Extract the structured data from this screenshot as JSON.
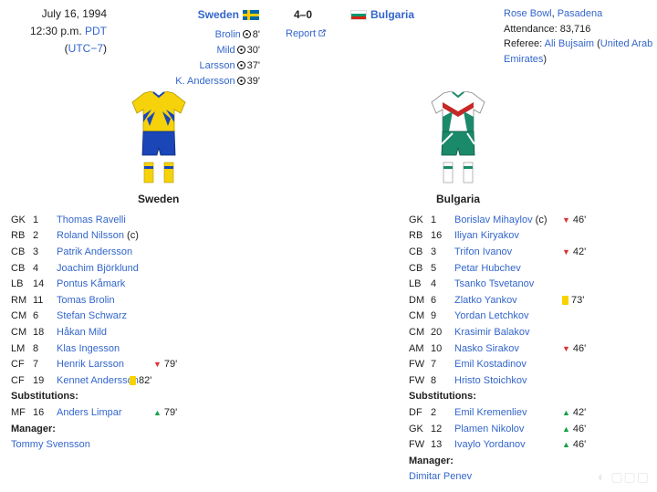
{
  "header": {
    "date": "July 16, 1994",
    "time": "12:30 p.m.",
    "tz": "PDT",
    "utc_prefix": "(",
    "utc": "UTC−7",
    "utc_suffix": ")",
    "home_team": "Sweden",
    "away_team": "Bulgaria",
    "score": "4–0",
    "report": "Report",
    "scorers": [
      {
        "name": "Brolin",
        "minute": "8'"
      },
      {
        "name": "Mild",
        "minute": "30'"
      },
      {
        "name": "Larsson",
        "minute": "37'"
      },
      {
        "name": "K. Andersson",
        "minute": "39'"
      }
    ],
    "venue": "Rose Bowl",
    "venue_sep": ", ",
    "city": "Pasadena",
    "attendance": "Attendance: 83,716",
    "referee_label": "Referee: ",
    "referee": "Ali Bujsaim",
    "referee_open": " (",
    "referee_country": "United Arab Emirates",
    "referee_close": ")"
  },
  "kits": {
    "home": {
      "shirt": "#f5d20a",
      "trim": "#1a46b8",
      "shorts": "#1a46b8",
      "socks": "#f5d20a"
    },
    "away": {
      "shirt": "#ffffff",
      "trim": "#1b8a6a",
      "accent": "#c62828",
      "shorts": "#1b8a6a",
      "socks": "#ffffff"
    }
  },
  "home": {
    "title": "Sweden",
    "players": [
      {
        "pos": "GK",
        "num": "1",
        "name": "Thomas Ravelli"
      },
      {
        "pos": "RB",
        "num": "2",
        "name": "Roland Nilsson",
        "extra": " (c)"
      },
      {
        "pos": "CB",
        "num": "3",
        "name": "Patrik Andersson"
      },
      {
        "pos": "CB",
        "num": "4",
        "name": "Joachim Björklund"
      },
      {
        "pos": "LB",
        "num": "14",
        "name": "Pontus Kåmark"
      },
      {
        "pos": "RM",
        "num": "11",
        "name": "Tomas Brolin"
      },
      {
        "pos": "CM",
        "num": "6",
        "name": "Stefan Schwarz"
      },
      {
        "pos": "CM",
        "num": "18",
        "name": "Håkan Mild"
      },
      {
        "pos": "LM",
        "num": "8",
        "name": "Klas Ingesson"
      },
      {
        "pos": "CF",
        "num": "7",
        "name": "Henrik Larsson",
        "event": "down",
        "minute": "79'"
      },
      {
        "pos": "CF",
        "num": "19",
        "name": "Kennet Andersson",
        "event": "yellow",
        "minute": "82'"
      }
    ],
    "subs_label": "Substitutions:",
    "subs": [
      {
        "pos": "MF",
        "num": "16",
        "name": "Anders Limpar",
        "event": "up",
        "minute": "79'"
      }
    ],
    "manager_label": "Manager:",
    "manager": "Tommy Svensson"
  },
  "away": {
    "title": "Bulgaria",
    "players": [
      {
        "pos": "GK",
        "num": "1",
        "name": "Borislav Mihaylov",
        "extra": " (c)",
        "event": "down",
        "minute": "46'"
      },
      {
        "pos": "RB",
        "num": "16",
        "name": "Iliyan Kiryakov"
      },
      {
        "pos": "CB",
        "num": "3",
        "name": "Trifon Ivanov",
        "event": "down",
        "minute": "42'"
      },
      {
        "pos": "CB",
        "num": "5",
        "name": "Petar Hubchev"
      },
      {
        "pos": "LB",
        "num": "4",
        "name": "Tsanko Tsvetanov"
      },
      {
        "pos": "DM",
        "num": "6",
        "name": "Zlatko Yankov",
        "event": "yellow",
        "minute": "73'"
      },
      {
        "pos": "CM",
        "num": "9",
        "name": "Yordan Letchkov"
      },
      {
        "pos": "CM",
        "num": "20",
        "name": "Krasimir Balakov"
      },
      {
        "pos": "AM",
        "num": "10",
        "name": "Nasko Sirakov",
        "event": "down",
        "minute": "46'"
      },
      {
        "pos": "FW",
        "num": "7",
        "name": "Emil Kostadinov"
      },
      {
        "pos": "FW",
        "num": "8",
        "name": "Hristo Stoichkov"
      }
    ],
    "subs_label": "Substitutions:",
    "subs": [
      {
        "pos": "DF",
        "num": "2",
        "name": "Emil Kremenliev",
        "event": "up",
        "minute": "42'"
      },
      {
        "pos": "GK",
        "num": "12",
        "name": "Plamen Nikolov",
        "event": "up",
        "minute": "46'"
      },
      {
        "pos": "FW",
        "num": "13",
        "name": "Ivaylo Yordanov",
        "event": "up",
        "minute": "46'"
      }
    ],
    "manager_label": "Manager:",
    "manager": "Dimitar Penev"
  }
}
